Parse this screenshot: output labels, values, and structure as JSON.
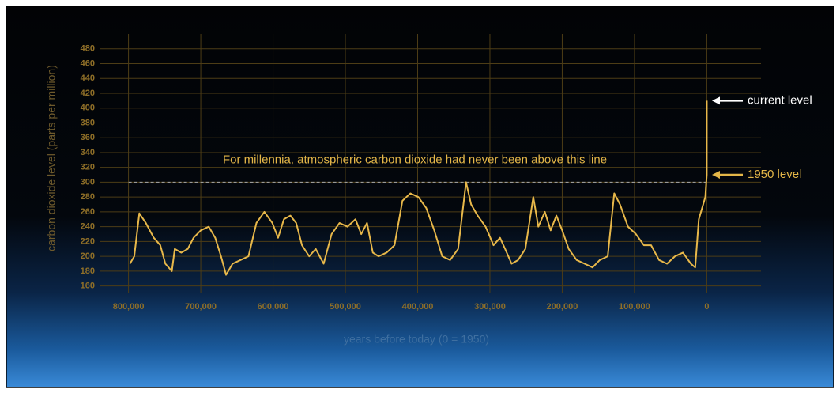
{
  "chart_data": {
    "type": "line",
    "y_label": "carbon dioxide level (parts per million)",
    "x_label": "years before today (0 = 1950)",
    "color": "#e8b84a",
    "grid": true,
    "xlim": [
      840000,
      -75000
    ],
    "ylim": [
      150,
      500
    ],
    "xticks": [
      {
        "value": 800000,
        "label": "800,000"
      },
      {
        "value": 700000,
        "label": "700,000"
      },
      {
        "value": 600000,
        "label": "600,000"
      },
      {
        "value": 500000,
        "label": "500,000"
      },
      {
        "value": 400000,
        "label": "400,000"
      },
      {
        "value": 300000,
        "label": "300,000"
      },
      {
        "value": 200000,
        "label": "200,000"
      },
      {
        "value": 100000,
        "label": "100,000"
      },
      0
    ],
    "yticks": [
      160,
      180,
      200,
      220,
      240,
      260,
      280,
      300,
      320,
      340,
      360,
      380,
      400,
      420,
      440,
      460,
      480
    ],
    "x": [
      798000,
      792000,
      785000,
      776000,
      765000,
      756000,
      749000,
      740000,
      736000,
      727000,
      718000,
      710000,
      700000,
      689000,
      680000,
      672000,
      665000,
      656000,
      645000,
      634000,
      623000,
      612000,
      601000,
      593000,
      585000,
      576000,
      568000,
      560000,
      550000,
      541000,
      530000,
      519000,
      508000,
      497000,
      486000,
      478000,
      470000,
      462000,
      454000,
      443000,
      432000,
      421000,
      410000,
      399000,
      388000,
      377000,
      366000,
      355000,
      344000,
      333000,
      326000,
      317000,
      306000,
      295000,
      286000,
      279000,
      270000,
      261000,
      251000,
      240000,
      233000,
      224000,
      216000,
      208000,
      200000,
      191000,
      180000,
      169000,
      158000,
      148000,
      137000,
      128000,
      120000,
      109000,
      98000,
      87000,
      77000,
      66000,
      55000,
      44000,
      33000,
      22000,
      16000,
      11000,
      5000,
      2000,
      0,
      -70
    ],
    "values": [
      190,
      200,
      258,
      245,
      225,
      215,
      190,
      180,
      210,
      205,
      210,
      225,
      235,
      240,
      225,
      200,
      175,
      190,
      195,
      200,
      245,
      260,
      245,
      225,
      250,
      255,
      245,
      215,
      200,
      210,
      190,
      230,
      245,
      240,
      250,
      230,
      245,
      205,
      200,
      205,
      215,
      275,
      285,
      280,
      265,
      235,
      200,
      195,
      210,
      300,
      270,
      255,
      240,
      215,
      225,
      210,
      190,
      195,
      210,
      280,
      240,
      260,
      235,
      255,
      235,
      210,
      195,
      190,
      185,
      195,
      200,
      285,
      270,
      240,
      230,
      215,
      215,
      195,
      190,
      200,
      205,
      190,
      185,
      250,
      270,
      280,
      310,
      410
    ],
    "reference_line": {
      "value": 300,
      "label": "For millennia, atmospheric carbon dioxide had never been above this line"
    },
    "annotations": [
      {
        "text": "current level",
        "y": 410
      },
      {
        "text": "1950 level",
        "y": 310
      }
    ]
  }
}
